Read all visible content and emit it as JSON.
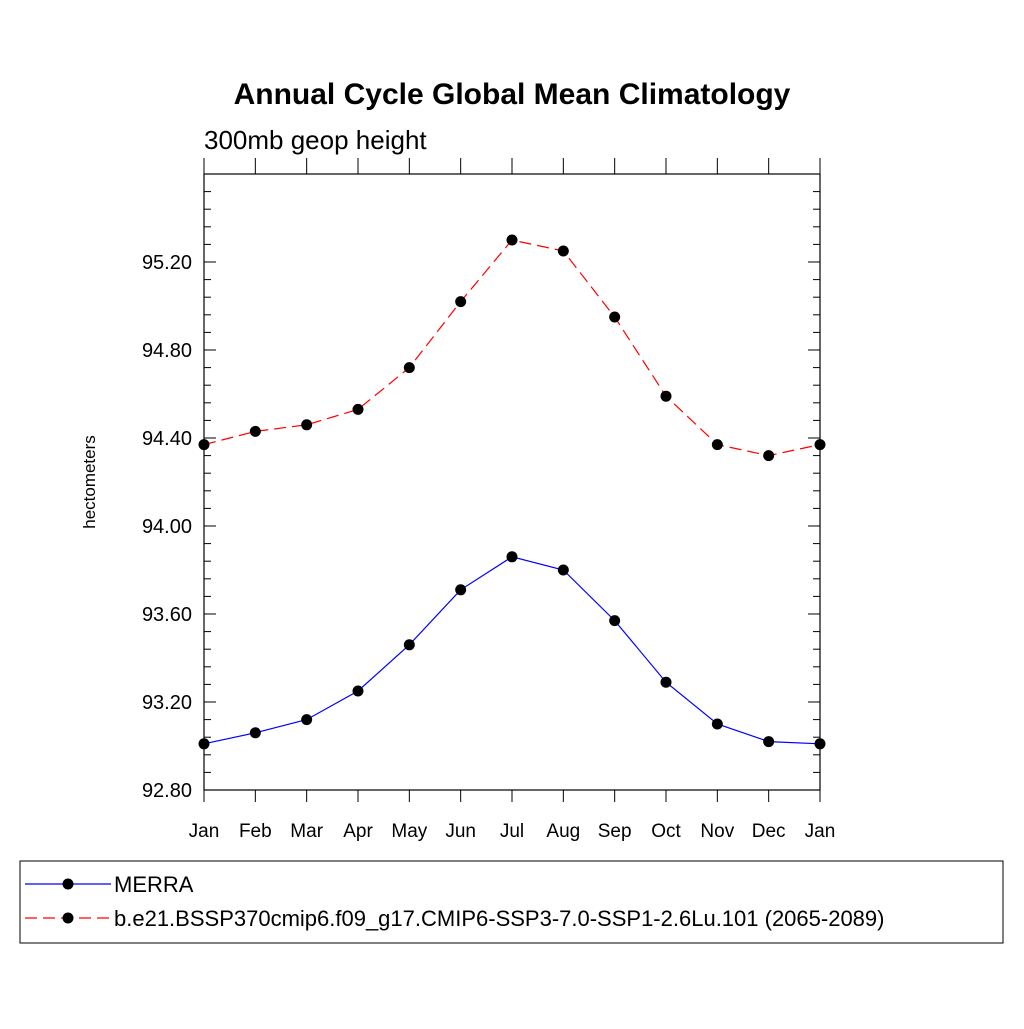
{
  "chart_data": {
    "type": "line",
    "title": "Annual Cycle Global Mean Climatology",
    "subtitle": "300mb geop height",
    "ylabel": "hectometers",
    "xlabel": "",
    "categories": [
      "Jan",
      "Feb",
      "Mar",
      "Apr",
      "May",
      "Jun",
      "Jul",
      "Aug",
      "Sep",
      "Oct",
      "Nov",
      "Dec",
      "Jan"
    ],
    "ylim": [
      92.8,
      95.6
    ],
    "yticks": [
      "92.80",
      "93.20",
      "93.60",
      "94.00",
      "94.40",
      "94.80",
      "95.20"
    ],
    "grid": false,
    "legend_position": "bottom",
    "series": [
      {
        "name": "MERRA",
        "color": "#0000ff",
        "line_style": "solid",
        "marker": "filled-circle",
        "values": [
          93.01,
          93.06,
          93.12,
          93.25,
          93.46,
          93.71,
          93.86,
          93.8,
          93.57,
          93.29,
          93.1,
          93.02,
          93.01
        ]
      },
      {
        "name": "b.e21.BSSP370cmip6.f09_g17.CMIP6-SSP3-7.0-SSP1-2.6Lu.101 (2065-2089)",
        "color": "#ff0000",
        "line_style": "dashed",
        "marker": "filled-circle",
        "values": [
          94.37,
          94.43,
          94.46,
          94.53,
          94.72,
          95.02,
          95.3,
          95.25,
          94.95,
          94.59,
          94.37,
          94.32,
          94.37
        ]
      }
    ]
  }
}
